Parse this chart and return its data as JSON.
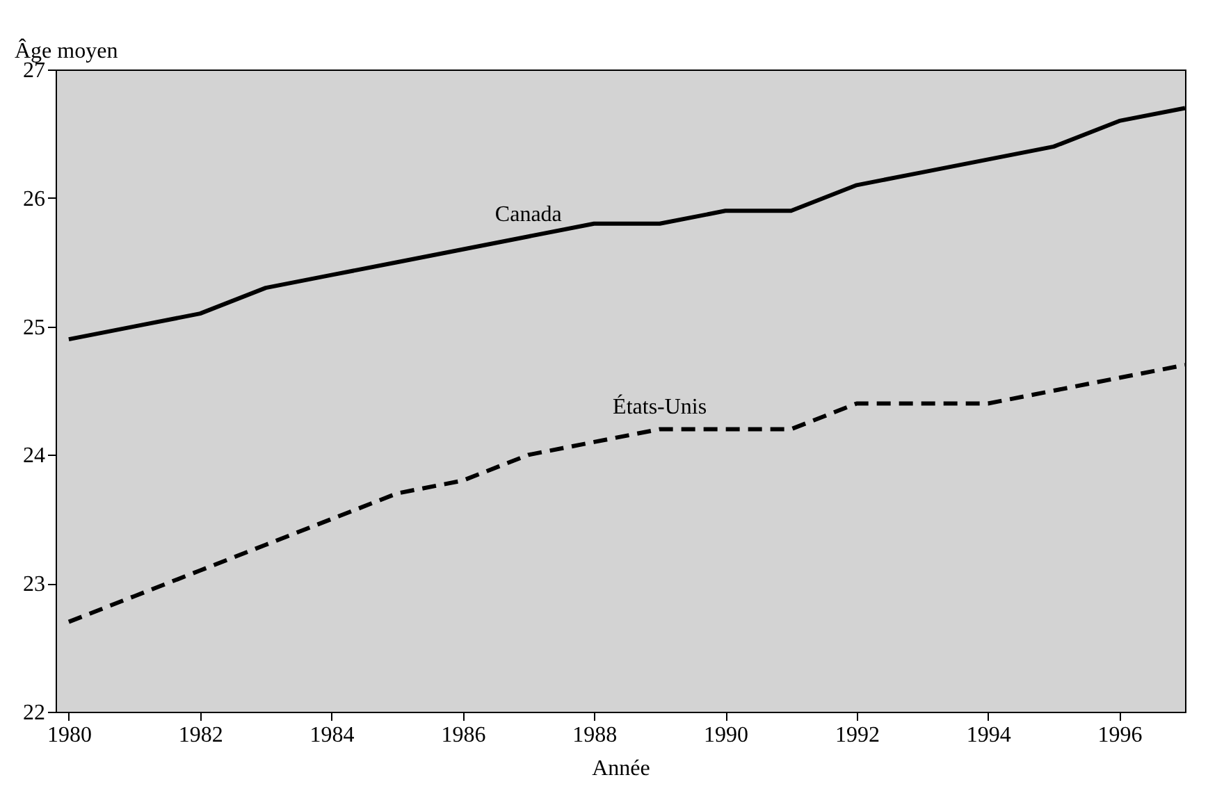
{
  "chart_data": {
    "type": "line",
    "xlabel": "Année",
    "ylabel": "Âge moyen",
    "x": [
      1980,
      1981,
      1982,
      1983,
      1984,
      1985,
      1986,
      1987,
      1988,
      1989,
      1990,
      1991,
      1992,
      1993,
      1994,
      1995,
      1996,
      1997
    ],
    "series": [
      {
        "name": "Canada",
        "color": "#000000",
        "line_style": "solid",
        "values": [
          24.9,
          25.0,
          25.1,
          25.3,
          25.4,
          25.5,
          25.6,
          25.7,
          25.8,
          25.8,
          25.9,
          25.9,
          26.1,
          26.2,
          26.3,
          26.4,
          26.6,
          26.7
        ]
      },
      {
        "name": "États-Unis",
        "color": "#000000",
        "line_style": "dashed",
        "values": [
          22.7,
          22.9,
          23.1,
          23.3,
          23.5,
          23.7,
          23.8,
          24.0,
          24.1,
          24.2,
          24.2,
          24.2,
          24.4,
          24.4,
          24.4,
          24.5,
          24.6,
          24.7
        ]
      }
    ],
    "xlim": [
      1979.8,
      1997
    ],
    "xticks": [
      1980,
      1982,
      1984,
      1986,
      1988,
      1990,
      1992,
      1994,
      1996
    ],
    "ylim": [
      22,
      27
    ],
    "yticks": [
      22,
      23,
      24,
      25,
      26,
      27
    ],
    "grid": false,
    "marker": "none"
  }
}
